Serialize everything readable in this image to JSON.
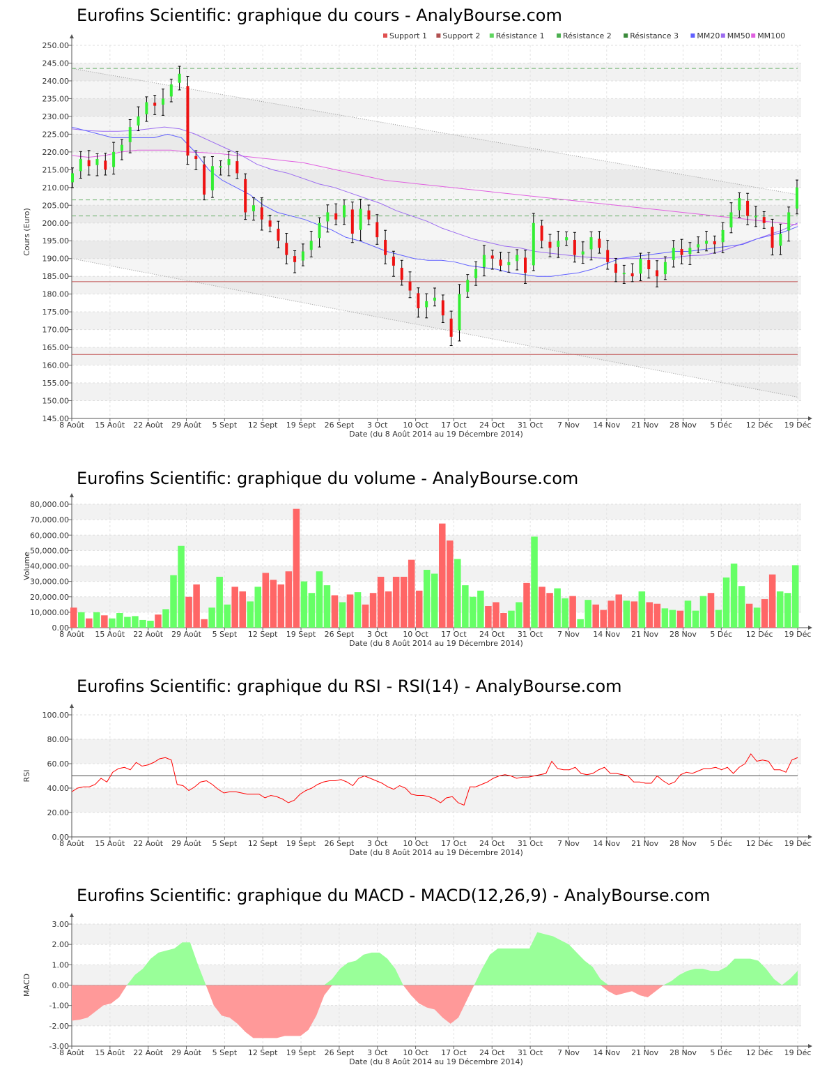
{
  "x_tick_labels": [
    "8 Août",
    "15 Août",
    "22 Août",
    "29 Août",
    "5 Sept",
    "12 Sept",
    "19 Sept",
    "26 Sept",
    "3 Oct",
    "10 Oct",
    "17 Oct",
    "24 Oct",
    "31 Oct",
    "7 Nov",
    "14 Nov",
    "21 Nov",
    "28 Nov",
    "5 Déc",
    "12 Déc",
    "19 Déc"
  ],
  "chart_data": [
    {
      "type": "candlestick",
      "title": "Eurofins Scientific: graphique du cours - AnalyBourse.com",
      "xlabel": "Date (du 8 Août 2014 au 19 Décembre 2014)",
      "ylabel": "Cours (Euro)",
      "ylim": [
        145,
        250
      ],
      "yticks": [
        "145.00",
        "150.00",
        "155.00",
        "160.00",
        "165.00",
        "170.00",
        "175.00",
        "180.00",
        "185.00",
        "190.00",
        "195.00",
        "200.00",
        "205.00",
        "210.00",
        "215.00",
        "220.00",
        "225.00",
        "230.00",
        "235.00",
        "240.00",
        "245.00",
        "250.00"
      ],
      "legend": [
        "Support 1",
        "Support 2",
        "Résistance 1",
        "Résistance 2",
        "Résistance 3",
        "MM20",
        "MM50",
        "MM100"
      ],
      "legend_colors": [
        "#e05050",
        "#b05050",
        "#5fd65f",
        "#4caf50",
        "#3a8a3a",
        "#6060ff",
        "#9c6cf0",
        "#e060e0"
      ],
      "levels": {
        "Support 1": 183.5,
        "Support 2": 163.0,
        "Résistance 1": 202.0,
        "Résistance 2": 206.5,
        "Résistance 3": 243.5
      },
      "trend_channel": {
        "upper": [
          243.5,
          208.0
        ],
        "lower": [
          190.0,
          151.0
        ]
      },
      "closes": [
        214,
        218,
        216,
        218,
        215,
        220,
        222,
        227,
        230,
        234,
        233,
        235,
        239,
        242,
        219,
        218,
        208,
        216,
        216,
        218,
        214,
        203,
        205,
        201,
        199,
        195,
        191,
        189,
        192,
        195,
        200,
        203,
        201,
        205,
        197,
        204,
        201,
        196,
        191,
        188,
        184,
        181,
        176,
        178,
        179,
        174,
        168,
        180,
        184,
        187,
        191,
        190,
        188,
        189,
        191,
        186,
        200,
        195,
        193,
        195,
        196,
        191,
        192,
        196,
        193,
        189,
        186,
        186,
        185,
        190,
        187,
        185,
        189,
        193,
        191,
        193,
        194,
        195,
        194,
        198,
        203,
        207,
        202,
        202,
        200,
        193,
        197,
        203,
        210
      ],
      "ma20": [
        227.0,
        226.0,
        225.0,
        224.0,
        224.0,
        224.0,
        224.0,
        225.0,
        224.0,
        220.0,
        215.0,
        212.0,
        210.0,
        208.0,
        205.0,
        203.0,
        202.0,
        201.0,
        199.5,
        198.0,
        196.0,
        195.0,
        193.5,
        192.0,
        191.0,
        190.0,
        189.5,
        189.5,
        189.0,
        188.0,
        187.5,
        187.0,
        186.0,
        185.5,
        185.0,
        185.0,
        185.5,
        186.0,
        187.0,
        188.5,
        190.0,
        190.5,
        191.0,
        191.5,
        192.0,
        192.0,
        192.5,
        193.0,
        193.5,
        194.0,
        195.5,
        196.5,
        197.5,
        199.0
      ],
      "ma50": [
        226.5,
        226.0,
        225.8,
        225.8,
        226.0,
        226.5,
        227.0,
        226.5,
        225.0,
        223.0,
        221.0,
        219.0,
        216.5,
        215.0,
        214.0,
        212.5,
        211.0,
        210.0,
        208.5,
        207.0,
        205.5,
        203.5,
        202.0,
        200.5,
        198.5,
        197.0,
        195.5,
        194.5,
        193.5,
        193.0,
        192.0,
        191.5,
        191.0,
        190.5,
        190.2,
        190.0,
        190.0,
        190.0,
        190.0,
        190.3,
        190.8,
        191.0,
        192.0,
        193.5,
        195.0,
        196.5,
        198.0,
        200.0
      ],
      "ma100": [
        219.0,
        218.5,
        219.0,
        220.0,
        220.5,
        220.5,
        220.5,
        220.0,
        219.8,
        219.5,
        219.0,
        218.5,
        218.0,
        217.5,
        217.0,
        216.0,
        215.0,
        214.0,
        213.0,
        212.0,
        211.5,
        211.0,
        210.5,
        210.0,
        209.5,
        209.0,
        208.5,
        208.0,
        207.5,
        207.0,
        206.5,
        206.0,
        205.5,
        205.0,
        204.5,
        204.0,
        203.5,
        203.0,
        202.5,
        202.0,
        201.5,
        201.0,
        200.5,
        200.0,
        199.5
      ]
    },
    {
      "type": "bar",
      "title": "Eurofins Scientific: graphique du volume - AnalyBourse.com",
      "xlabel": "Date (du 8 Août 2014 au 19 Décembre 2014)",
      "ylabel": "Volume",
      "ylim": [
        0,
        80000
      ],
      "yticks": [
        "0.00",
        "10,000.00",
        "20,000.00",
        "30,000.00",
        "40,000.00",
        "50,000.00",
        "60,000.00",
        "70,000.00",
        "80,000.00"
      ],
      "values": [
        13000,
        10000,
        6000,
        10000,
        8000,
        6000,
        9500,
        7000,
        7500,
        5000,
        4500,
        8500,
        12000,
        34000,
        53000,
        20000,
        28000,
        5500,
        13000,
        33000,
        15000,
        26500,
        23500,
        17000,
        26500,
        35500,
        31000,
        28000,
        36500,
        77000,
        30000,
        22500,
        36500,
        27500,
        21000,
        16500,
        21500,
        23000,
        15000,
        22500,
        33000,
        23500,
        33000,
        33000,
        44000,
        24000,
        37500,
        35000,
        67500,
        56500,
        44500,
        27500,
        20000,
        24000,
        14000,
        16500,
        9500,
        11000,
        16500,
        29000,
        59000,
        26500,
        22500,
        25500,
        19000,
        20500,
        5500,
        18000,
        15000,
        11500,
        17500,
        21500,
        17500,
        17000,
        23500,
        16500,
        15500,
        12500,
        11500,
        11000,
        17500,
        11000,
        20500,
        22500,
        11500,
        32500,
        41500,
        27000,
        15500,
        13000,
        18500,
        34500,
        23500,
        22500,
        40500
      ],
      "up_color": "#66ff66",
      "down_color": "#ff6666"
    },
    {
      "type": "line",
      "title": "Eurofins Scientific: graphique du RSI - RSI(14) - AnalyBourse.com",
      "xlabel": "Date (du 8 Août 2014 au 19 Décembre 2014)",
      "ylabel": "RSI",
      "ylim": [
        0,
        100
      ],
      "yticks": [
        "0.00",
        "20.00",
        "40.00",
        "60.00",
        "80.00",
        "100.00"
      ],
      "reference_line": 50,
      "values": [
        37,
        40,
        41,
        41,
        43,
        48,
        45,
        53,
        56,
        57,
        55,
        61,
        58,
        59,
        61,
        64,
        65,
        63,
        43,
        42,
        38,
        41,
        45,
        46,
        43,
        39,
        36,
        37,
        37,
        36,
        35,
        35,
        35,
        32,
        34,
        33,
        31,
        28,
        30,
        35,
        38,
        40,
        43,
        45,
        46,
        46,
        47,
        45,
        42,
        48,
        50,
        48,
        46,
        44,
        41,
        39,
        42,
        40,
        35,
        34,
        34,
        33,
        31,
        28,
        32,
        33,
        28,
        26,
        41,
        41,
        43,
        45,
        48,
        50,
        51,
        50,
        48,
        49,
        49,
        50,
        51,
        52,
        62,
        56,
        55,
        55,
        57,
        52,
        51,
        52,
        55,
        57,
        52,
        52,
        51,
        50,
        45,
        45,
        44,
        44,
        50,
        46,
        43,
        45,
        51,
        53,
        52,
        54,
        56,
        56,
        57,
        55,
        57,
        52,
        57,
        60,
        68,
        62,
        63,
        62,
        55,
        55,
        53,
        63,
        65
      ],
      "color": "#ff0000"
    },
    {
      "type": "area",
      "title": "Eurofins Scientific: graphique du MACD - MACD(12,26,9) - AnalyBourse.com",
      "xlabel": "Date (du 8 Août 2014 au 19 Décembre 2014)",
      "ylabel": "MACD",
      "ylim": [
        -3,
        3
      ],
      "yticks": [
        "-3.00",
        "-2.00",
        "-1.00",
        "0.00",
        "1.00",
        "2.00",
        "3.00"
      ],
      "values": [
        -1.75,
        -1.7,
        -1.6,
        -1.3,
        -1.0,
        -0.9,
        -0.6,
        0.0,
        0.5,
        0.8,
        1.3,
        1.6,
        1.7,
        1.8,
        2.1,
        2.1,
        1.0,
        0.0,
        -1.0,
        -1.5,
        -1.6,
        -1.9,
        -2.3,
        -2.6,
        -2.6,
        -2.6,
        -2.6,
        -2.5,
        -2.5,
        -2.5,
        -2.2,
        -1.5,
        -0.5,
        0.3,
        0.8,
        1.1,
        1.2,
        1.5,
        1.6,
        1.6,
        1.3,
        0.8,
        0.0,
        -0.5,
        -0.9,
        -1.1,
        -1.2,
        -1.6,
        -1.9,
        -1.6,
        -0.8,
        0.0,
        0.8,
        1.5,
        1.8,
        1.8,
        1.8,
        1.8,
        1.8,
        2.6,
        2.5,
        2.4,
        2.2,
        2.0,
        1.6,
        1.2,
        0.9,
        0.3,
        -0.3,
        -0.5,
        -0.4,
        -0.3,
        -0.5,
        -0.6,
        -0.3,
        0.0,
        0.2,
        0.5,
        0.7,
        0.8,
        0.8,
        0.7,
        0.7,
        0.9,
        1.3,
        1.3,
        1.3,
        1.2,
        0.8,
        0.3,
        0.0,
        0.3,
        0.7
      ],
      "positive_color": "#99ff99",
      "negative_color": "#ff9999"
    }
  ]
}
